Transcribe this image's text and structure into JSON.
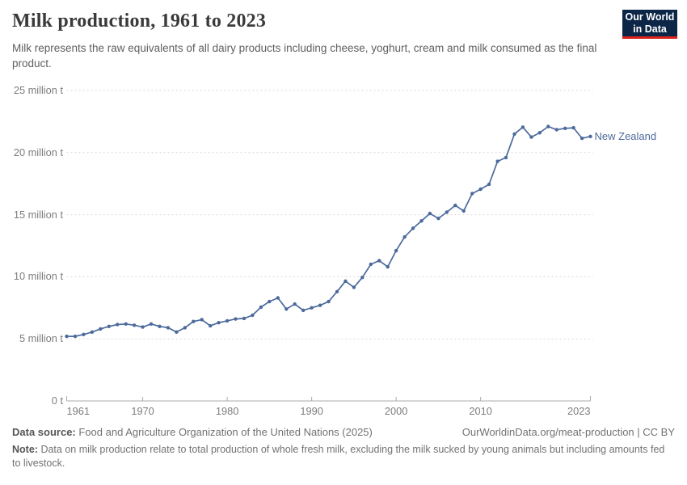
{
  "header": {
    "title": "Milk production, 1961 to 2023",
    "subtitle": "Milk represents the raw equivalents of all dairy products including cheese, yoghurt, cream and milk consumed as the final product."
  },
  "logo": {
    "line1": "Our World",
    "line2": "in Data"
  },
  "chart_data": {
    "type": "line",
    "title": "Milk production, 1961 to 2023",
    "unit": "million t",
    "grid": "horizontal-dashed",
    "legend_position": "end-of-line-label",
    "line_color": "#4c6a9c",
    "xlim": [
      1961,
      2023
    ],
    "ylim": [
      0,
      25
    ],
    "x_ticks": [
      {
        "value": 1961,
        "label": "1961"
      },
      {
        "value": 1970,
        "label": "1970"
      },
      {
        "value": 1980,
        "label": "1980"
      },
      {
        "value": 1990,
        "label": "1990"
      },
      {
        "value": 2000,
        "label": "2000"
      },
      {
        "value": 2010,
        "label": "2010"
      },
      {
        "value": 2023,
        "label": "2023"
      }
    ],
    "y_ticks": [
      {
        "value": 0,
        "label": "0 t"
      },
      {
        "value": 5,
        "label": "5 million t"
      },
      {
        "value": 10,
        "label": "10 million t"
      },
      {
        "value": 15,
        "label": "15 million t"
      },
      {
        "value": 20,
        "label": "20 million t"
      },
      {
        "value": 25,
        "label": "25 million t"
      }
    ],
    "series": [
      {
        "name": "New Zealand",
        "x": [
          1961,
          1962,
          1963,
          1964,
          1965,
          1966,
          1967,
          1968,
          1969,
          1970,
          1971,
          1972,
          1973,
          1974,
          1975,
          1976,
          1977,
          1978,
          1979,
          1980,
          1981,
          1982,
          1983,
          1984,
          1985,
          1986,
          1987,
          1988,
          1989,
          1990,
          1991,
          1992,
          1993,
          1994,
          1995,
          1996,
          1997,
          1998,
          1999,
          2000,
          2001,
          2002,
          2003,
          2004,
          2005,
          2006,
          2007,
          2008,
          2009,
          2010,
          2011,
          2012,
          2013,
          2014,
          2015,
          2016,
          2017,
          2018,
          2019,
          2020,
          2021,
          2022,
          2023
        ],
        "values": [
          5.2,
          5.2,
          5.35,
          5.55,
          5.8,
          6.0,
          6.15,
          6.2,
          6.1,
          5.95,
          6.2,
          6.0,
          5.9,
          5.55,
          5.9,
          6.4,
          6.55,
          6.05,
          6.3,
          6.45,
          6.6,
          6.65,
          6.9,
          7.55,
          8.0,
          8.3,
          7.4,
          7.8,
          7.3,
          7.5,
          7.7,
          8.0,
          8.8,
          9.65,
          9.15,
          9.95,
          11.0,
          11.3,
          10.8,
          12.1,
          13.2,
          13.9,
          14.5,
          15.1,
          14.7,
          15.2,
          15.75,
          15.3,
          16.7,
          17.05,
          17.45,
          19.3,
          19.6,
          21.5,
          22.05,
          21.25,
          21.6,
          22.1,
          21.85,
          21.95,
          22.0,
          21.15,
          21.3
        ]
      }
    ]
  },
  "footer": {
    "data_source_label": "Data source:",
    "data_source": "Food and Agriculture Organization of the United Nations (2025)",
    "link": "OurWorldinData.org/meat-production | CC BY",
    "note_label": "Note:",
    "note": "Data on milk production relate to total production of whole fresh milk, excluding the milk sucked by young animals but including amounts fed to livestock."
  }
}
